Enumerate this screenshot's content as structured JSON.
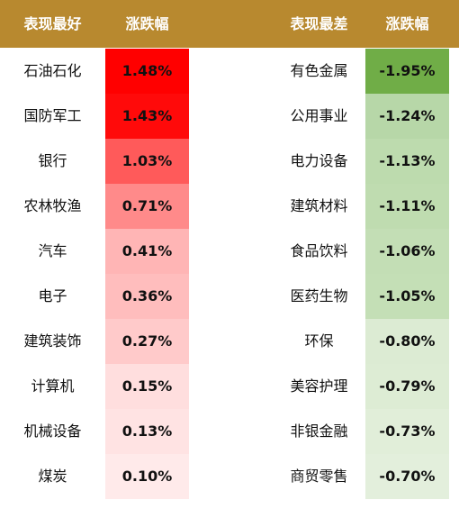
{
  "header": {
    "best_label": "表现最好",
    "best_change_label": "涨跌幅",
    "worst_label": "表现最差",
    "worst_change_label": "涨跌幅"
  },
  "colors": {
    "header_bg": "#b8892f"
  },
  "rows": [
    {
      "best_name": "石油石化",
      "best_value": "1.48%",
      "best_color": "#ff0000",
      "worst_name": "有色金属",
      "worst_value": "-1.95%",
      "worst_color": "#70ad47"
    },
    {
      "best_name": "国防军工",
      "best_value": "1.43%",
      "best_color": "#ff0a0a",
      "worst_name": "公用事业",
      "worst_value": "-1.24%",
      "worst_color": "#b7d7a8"
    },
    {
      "best_name": "银行",
      "best_value": "1.03%",
      "best_color": "#ff5a5a",
      "worst_name": "电力设备",
      "worst_value": "-1.13%",
      "worst_color": "#bddbae"
    },
    {
      "best_name": "农林牧渔",
      "best_value": "0.71%",
      "best_color": "#ff8a8a",
      "worst_name": "建筑材料",
      "worst_value": "-1.11%",
      "worst_color": "#bfdcb0"
    },
    {
      "best_name": "汽车",
      "best_value": "0.41%",
      "best_color": "#ffb5b5",
      "worst_name": "食品饮料",
      "worst_value": "-1.06%",
      "worst_color": "#c3deb5"
    },
    {
      "best_name": "电子",
      "best_value": "0.36%",
      "best_color": "#ffbdbd",
      "worst_name": "医药生物",
      "worst_value": "-1.05%",
      "worst_color": "#c4dfb6"
    },
    {
      "best_name": "建筑装饰",
      "best_value": "0.27%",
      "best_color": "#ffcaca",
      "worst_name": "环保",
      "worst_value": "-0.80%",
      "worst_color": "#dcebd3"
    },
    {
      "best_name": "计算机",
      "best_value": "0.15%",
      "best_color": "#ffdede",
      "worst_name": "美容护理",
      "worst_value": "-0.79%",
      "worst_color": "#ddecd4"
    },
    {
      "best_name": "机械设备",
      "best_value": "0.13%",
      "best_color": "#ffe3e3",
      "worst_name": "非银金融",
      "worst_value": "-0.73%",
      "worst_color": "#e1eed9"
    },
    {
      "best_name": "煤炭",
      "best_value": "0.10%",
      "best_color": "#ffeaea",
      "worst_name": "商贸零售",
      "worst_value": "-0.70%",
      "worst_color": "#e3efdc"
    }
  ]
}
